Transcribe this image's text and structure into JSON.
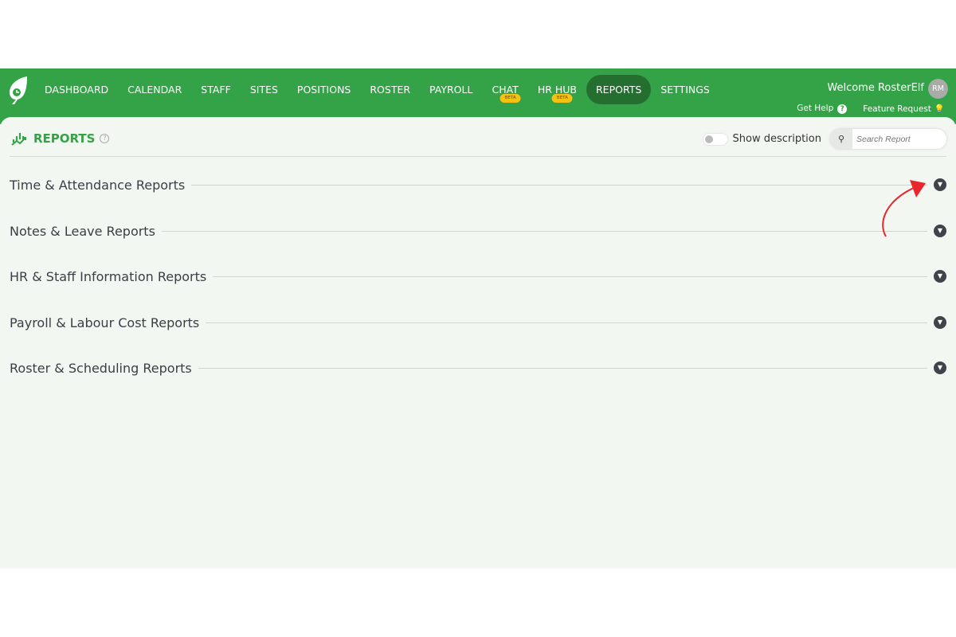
{
  "nav": {
    "items": [
      {
        "label": "DASHBOARD"
      },
      {
        "label": "CALENDAR"
      },
      {
        "label": "STAFF"
      },
      {
        "label": "SITES"
      },
      {
        "label": "POSITIONS"
      },
      {
        "label": "ROSTER"
      },
      {
        "label": "PAYROLL"
      },
      {
        "label": "CHAT",
        "badge": "BETA"
      },
      {
        "label": "HR HUB",
        "badge": "BETA"
      },
      {
        "label": "REPORTS",
        "active": true
      },
      {
        "label": "SETTINGS"
      }
    ],
    "welcome": "Welcome RosterElf",
    "avatar": "RM",
    "get_help": "Get Help",
    "feature_request": "Feature Request"
  },
  "header": {
    "title": "REPORTS",
    "show_description": "Show description",
    "show_description_on": false,
    "search_placeholder": "Search Report"
  },
  "sections": [
    {
      "label": "Time & Attendance Reports"
    },
    {
      "label": "Notes & Leave Reports"
    },
    {
      "label": "HR & Staff Information Reports"
    },
    {
      "label": "Payroll & Labour Cost Reports"
    },
    {
      "label": "Roster & Scheduling Reports"
    }
  ],
  "colors": {
    "brand": "#34a246",
    "active": "#246f2f",
    "badge": "#f5c211",
    "annotation": "#e8262b"
  }
}
